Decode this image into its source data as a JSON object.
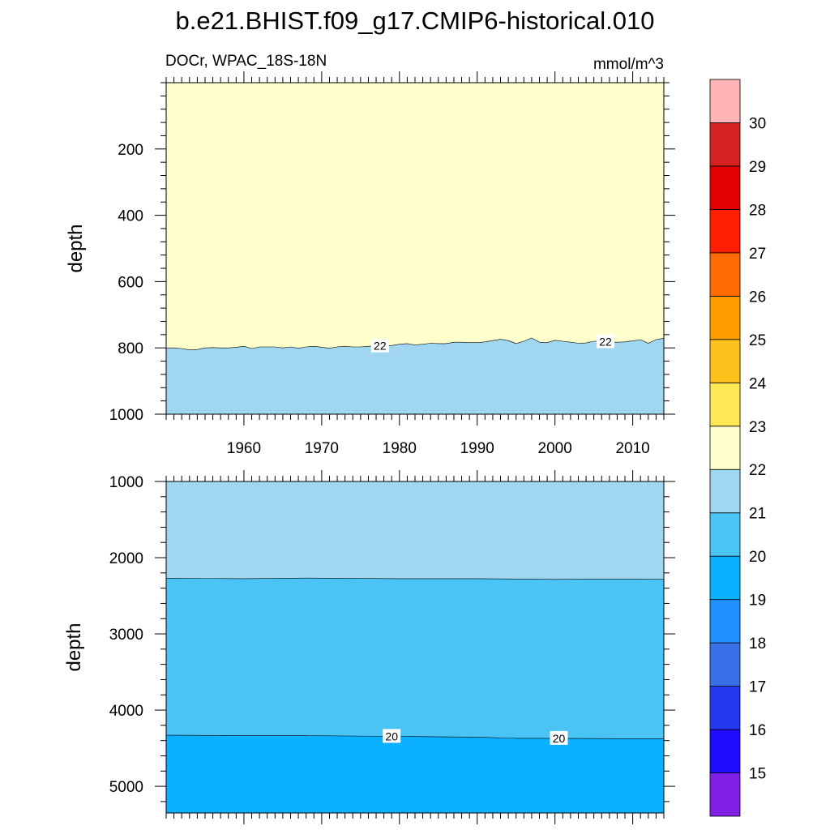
{
  "chart_data": {
    "type": "contour",
    "title": "b.e21.BHIST.f09_g17.CMIP6-historical.010",
    "left_subtitle": "DOCr, WPAC_18S-18N",
    "right_subtitle": "mmol/m^3",
    "xlim": [
      1950,
      2014
    ],
    "x_ticks": [
      1960,
      1970,
      1980,
      1990,
      2000,
      2010
    ],
    "panels": [
      {
        "name": "upper",
        "ylabel": "depth",
        "ylim": [
          0,
          1000
        ],
        "y_ticks": [
          200,
          400,
          600,
          800,
          1000
        ],
        "fill_above": "#ffffcc",
        "contours": [
          {
            "level": 22,
            "fill_below": "#a0d6f0",
            "x": [
              1951,
              1952,
              1953,
              1954,
              1955,
              1956,
              1957,
              1958,
              1959,
              1960,
              1961,
              1962,
              1963,
              1964,
              1965,
              1966,
              1967,
              1968,
              1969,
              1970,
              1971,
              1972,
              1973,
              1974,
              1975,
              1976,
              1977,
              1978,
              1979,
              1980,
              1981,
              1982,
              1983,
              1984,
              1985,
              1986,
              1987,
              1988,
              1989,
              1990,
              1991,
              1992,
              1993,
              1994,
              1995,
              1996,
              1997,
              1998,
              1999,
              2000,
              2001,
              2002,
              2003,
              2004,
              2005,
              2006,
              2007,
              2008,
              2009,
              2010,
              2011,
              2012,
              2013,
              2014
            ],
            "y": [
              800,
              802,
              806,
              805,
              800,
              799,
              800,
              800,
              798,
              795,
              802,
              797,
              797,
              797,
              800,
              797,
              801,
              797,
              795,
              798,
              801,
              797,
              795,
              797,
              797,
              795,
              794,
              794,
              793,
              789,
              787,
              791,
              789,
              786,
              787,
              787,
              783,
              783,
              784,
              784,
              782,
              778,
              774,
              778,
              787,
              780,
              770,
              783,
              784,
              777,
              780,
              783,
              786,
              785,
              780,
              780,
              782,
              783,
              782,
              779,
              775,
              786,
              775,
              771
            ],
            "labels": [
              {
                "x": 1977.5,
                "text": "22"
              },
              {
                "x": 2006.5,
                "text": "22"
              }
            ]
          }
        ]
      },
      {
        "name": "lower",
        "ylabel": "depth",
        "ylim": [
          1000,
          5350
        ],
        "y_ticks": [
          1000,
          2000,
          3000,
          4000,
          5000
        ],
        "fill_above": "#a0d6f0",
        "contours": [
          {
            "level": 21,
            "fill_below": "#4ac3f5",
            "x": [
              1951,
              1960,
              1968,
              1980,
              1990,
              2000,
              2008,
              2014
            ],
            "y": [
              2270,
              2275,
              2268,
              2275,
              2275,
              2285,
              2280,
              2285
            ],
            "labels": []
          },
          {
            "level": 20,
            "fill_below": "#0bb0fe",
            "x": [
              1951,
              1960,
              1968,
              1980,
              1990,
              1995,
              2000,
              2008,
              2014
            ],
            "y": [
              4330,
              4335,
              4335,
              4345,
              4355,
              4370,
              4370,
              4375,
              4375
            ],
            "labels": [
              {
                "x": 1979,
                "text": "20"
              },
              {
                "x": 2000.5,
                "text": "20"
              }
            ]
          }
        ]
      }
    ],
    "colorbar": {
      "labels": [
        "15",
        "16",
        "17",
        "18",
        "19",
        "20",
        "21",
        "22",
        "23",
        "24",
        "25",
        "26",
        "27",
        "28",
        "29",
        "30"
      ],
      "colors": [
        "#7f1fe6",
        "#1f0afe",
        "#2237f0",
        "#3b71e8",
        "#1e90ff",
        "#0bb0fe",
        "#4ac3f5",
        "#a0d6f0",
        "#ffffcc",
        "#ffe853",
        "#fec21e",
        "#ff9c01",
        "#fe6b00",
        "#ff1e00",
        "#e30000",
        "#d42121",
        "#feb3b4"
      ]
    }
  }
}
